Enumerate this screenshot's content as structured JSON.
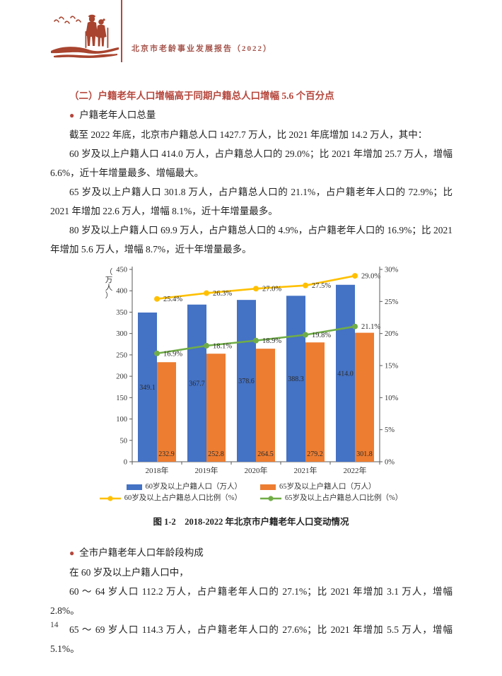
{
  "header": {
    "report_title": "北京市老龄事业发展报告（2022）"
  },
  "section_totals": {
    "heading": "（二）户籍老年人口增幅高于同期户籍总人口增幅 5.6 个百分点",
    "bullet": "户籍老年人口总量",
    "paragraphs": [
      "截至 2022 年底，北京市户籍总人口 1427.7 万人，比 2021 年底增加 14.2 万人，其中：",
      "60 岁及以上户籍人口 414.0 万人，占户籍总人口的 29.0%；比 2021 年增加 25.7 万人，增幅 6.6%，近十年增量最多、增幅最大。",
      "65 岁及以上户籍人口 301.8 万人，占户籍总人口的 21.1%，占户籍老年人口的 72.9%；比 2021 年增加 22.6 万人，增幅 8.1%，近十年增量最多。",
      "80 岁及以上户籍人口 69.9 万人，占户籍总人口的 4.9%，占户籍老年人口的 16.9%；比 2021 年增加 5.6 万人，增幅 8.7%，近十年增量最多。"
    ]
  },
  "chart_data": {
    "type": "bar+line",
    "categories": [
      "2018年",
      "2019年",
      "2020年",
      "2021年",
      "2022年"
    ],
    "series": [
      {
        "name": "60岁及以上户籍人口（万人）",
        "type": "bar",
        "axis": "left",
        "color": "#4472C4",
        "values": [
          349.1,
          367.7,
          378.6,
          388.3,
          414.0
        ]
      },
      {
        "name": "65岁及以上户籍人口（万人）",
        "type": "bar",
        "axis": "left",
        "color": "#ED7D31",
        "values": [
          232.9,
          252.8,
          264.5,
          279.2,
          301.8
        ]
      },
      {
        "name": "60岁及以上占户籍总人口比例（%）",
        "type": "line",
        "axis": "right",
        "color": "#FFC000",
        "values": [
          25.4,
          26.3,
          27.0,
          27.5,
          29.0
        ]
      },
      {
        "name": "65岁及以上占户籍总人口比例（%）",
        "type": "line",
        "axis": "right",
        "color": "#70AD47",
        "values": [
          16.9,
          18.1,
          18.9,
          19.8,
          21.1
        ]
      }
    ],
    "left_axis": {
      "label": "（万人）",
      "min": 0,
      "max": 450,
      "step": 50
    },
    "right_axis": {
      "min": 0,
      "max": 30,
      "step": 5,
      "suffix": "%"
    },
    "grid": false,
    "legend_position": "bottom",
    "caption": "图 1-2　2018-2022 年北京市户籍老年人口变动情况"
  },
  "section_age_structure": {
    "bullet": "全市户籍老年人口年龄段构成",
    "paragraphs": [
      "在 60 岁及以上户籍人口中，",
      "60 ～ 64 岁人口 112.2 万人，占户籍老年人口的 27.1%；比 2021 年增加 3.1 万人，增幅 2.8%。",
      "65 ～ 69 岁人口 114.3 万人，占户籍老年人口的 27.6%；比 2021 年增加 5.5 万人，增幅 5.1%。"
    ]
  },
  "footer": {
    "page_number": "14"
  },
  "theme": {
    "accent_red": "#b5463c",
    "logo_red": "#a8442f",
    "text": "#1f1f1f"
  }
}
